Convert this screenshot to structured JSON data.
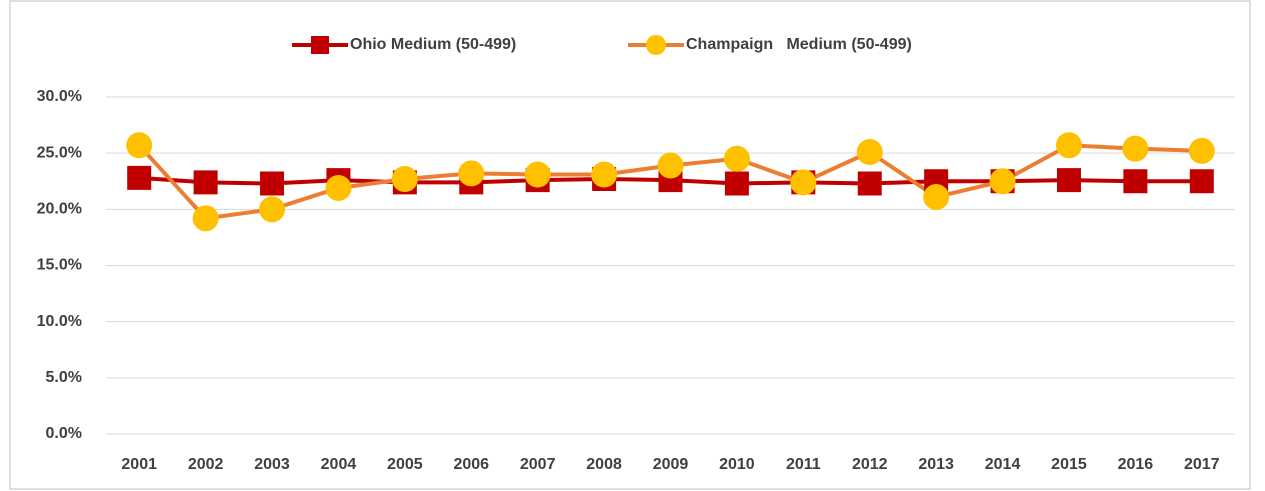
{
  "chart_data": {
    "type": "line",
    "categories": [
      "2001",
      "2002",
      "2003",
      "2004",
      "2005",
      "2006",
      "2007",
      "2008",
      "2009",
      "2010",
      "2011",
      "2012",
      "2013",
      "2014",
      "2015",
      "2016",
      "2017"
    ],
    "series": [
      {
        "name": "Ohio Medium (50-499)",
        "color": "#c00000",
        "marker": "square",
        "marker_color": "#c00000",
        "values": [
          22.8,
          22.4,
          22.3,
          22.6,
          22.4,
          22.4,
          22.6,
          22.7,
          22.6,
          22.3,
          22.4,
          22.3,
          22.5,
          22.5,
          22.6,
          22.5,
          22.5
        ]
      },
      {
        "name": "Champaign   Medium (50-499)",
        "color": "#ed7d31",
        "marker": "circle",
        "marker_color": "#ffc000",
        "values": [
          25.7,
          19.2,
          20.0,
          21.9,
          22.7,
          23.2,
          23.1,
          23.1,
          23.9,
          24.5,
          22.4,
          25.1,
          21.1,
          22.5,
          25.7,
          25.4,
          25.2
        ]
      }
    ],
    "ylim": [
      0,
      30
    ],
    "yticks": [
      {
        "value": 0,
        "label": "0.0%"
      },
      {
        "value": 5,
        "label": "5.0%"
      },
      {
        "value": 10,
        "label": "10.0%"
      },
      {
        "value": 15,
        "label": "15.0%"
      },
      {
        "value": 20,
        "label": "20.0%"
      },
      {
        "value": 25,
        "label": "25.0%"
      },
      {
        "value": 30,
        "label": "30.0%"
      }
    ],
    "grid": true,
    "legend": "top"
  }
}
